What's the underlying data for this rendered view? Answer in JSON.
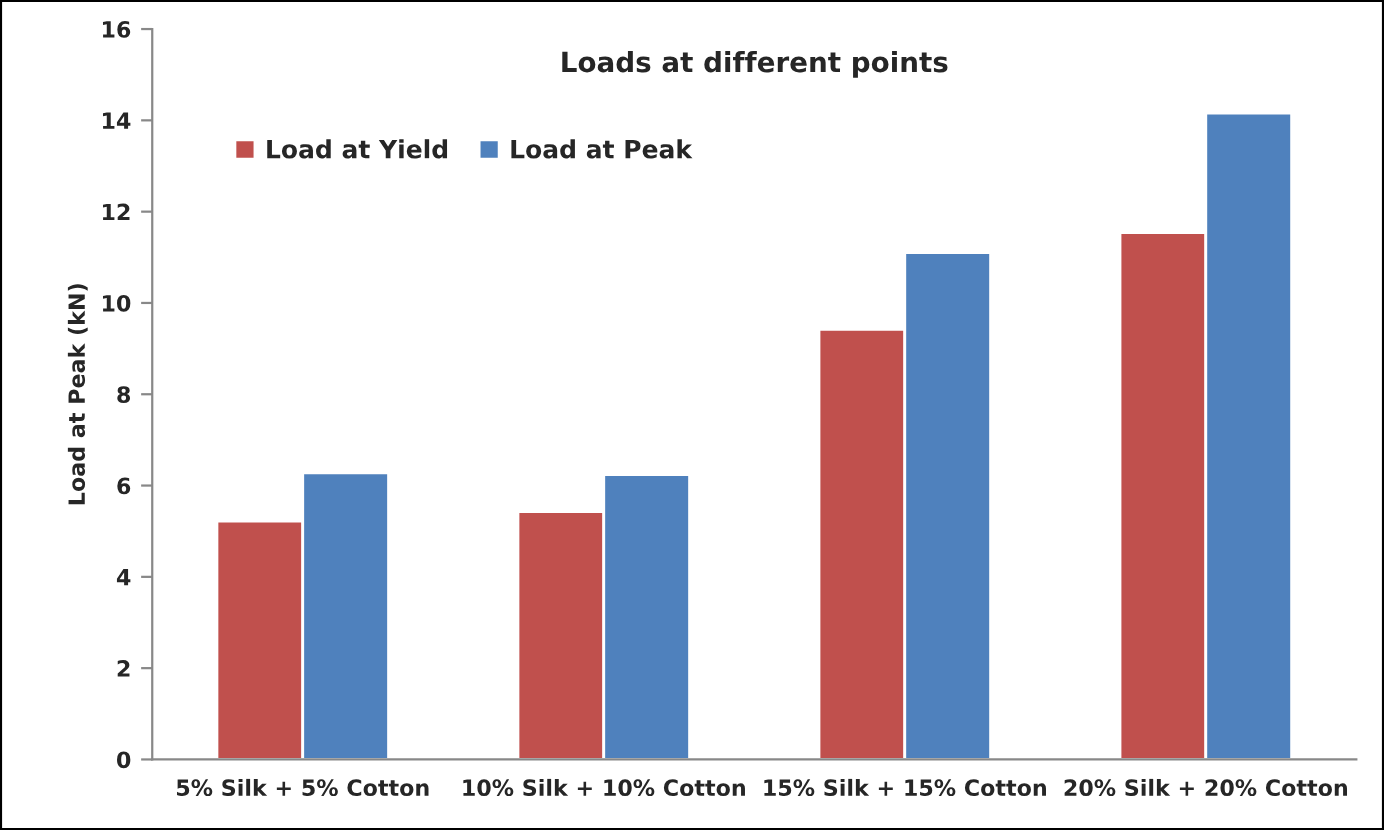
{
  "chart_data": {
    "type": "bar",
    "title": "Loads at different points",
    "ylabel": "Load at Peak (kN)",
    "categories": [
      "5% Silk + 5% Cotton",
      "10% Silk + 10% Cotton",
      "15% Silk + 15% Cotton",
      "20% Silk + 20% Cotton"
    ],
    "series": [
      {
        "name": "Load at Yield",
        "color": "#c0504d",
        "values": [
          5.22,
          5.43,
          9.42,
          11.54
        ]
      },
      {
        "name": "Load at Peak",
        "color": "#4f81bd",
        "values": [
          6.28,
          6.24,
          11.1,
          14.16
        ]
      }
    ],
    "ylim": [
      0,
      16
    ],
    "yticks": [
      0,
      2,
      4,
      6,
      8,
      10,
      12,
      14,
      16
    ],
    "grid": false,
    "legend": "top left"
  }
}
